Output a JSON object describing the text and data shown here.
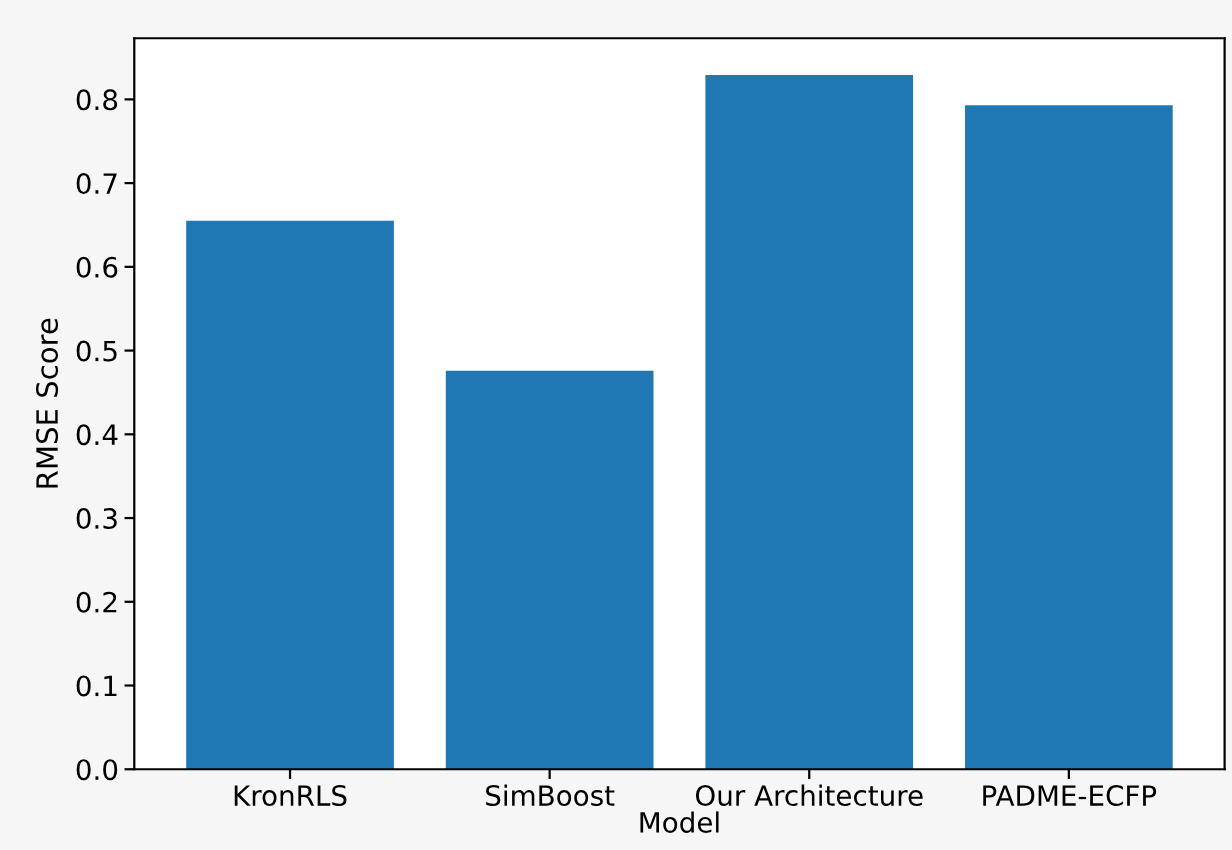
{
  "chart_data": {
    "type": "bar",
    "xlabel": "Model",
    "ylabel": "RMSE Score",
    "categories": [
      "KronRLS",
      "SimBoost",
      "Our Architecture",
      "PADME-ECFP"
    ],
    "values": [
      0.655,
      0.476,
      0.829,
      0.793
    ],
    "color": "#1f77b4",
    "ylim": [
      0,
      0.873
    ],
    "yticks": [
      {
        "value": 0,
        "label": "0.0"
      },
      0.1,
      0.2,
      0.3,
      0.4,
      0.5,
      0.6,
      0.7,
      0.8
    ],
    "grid": false
  }
}
